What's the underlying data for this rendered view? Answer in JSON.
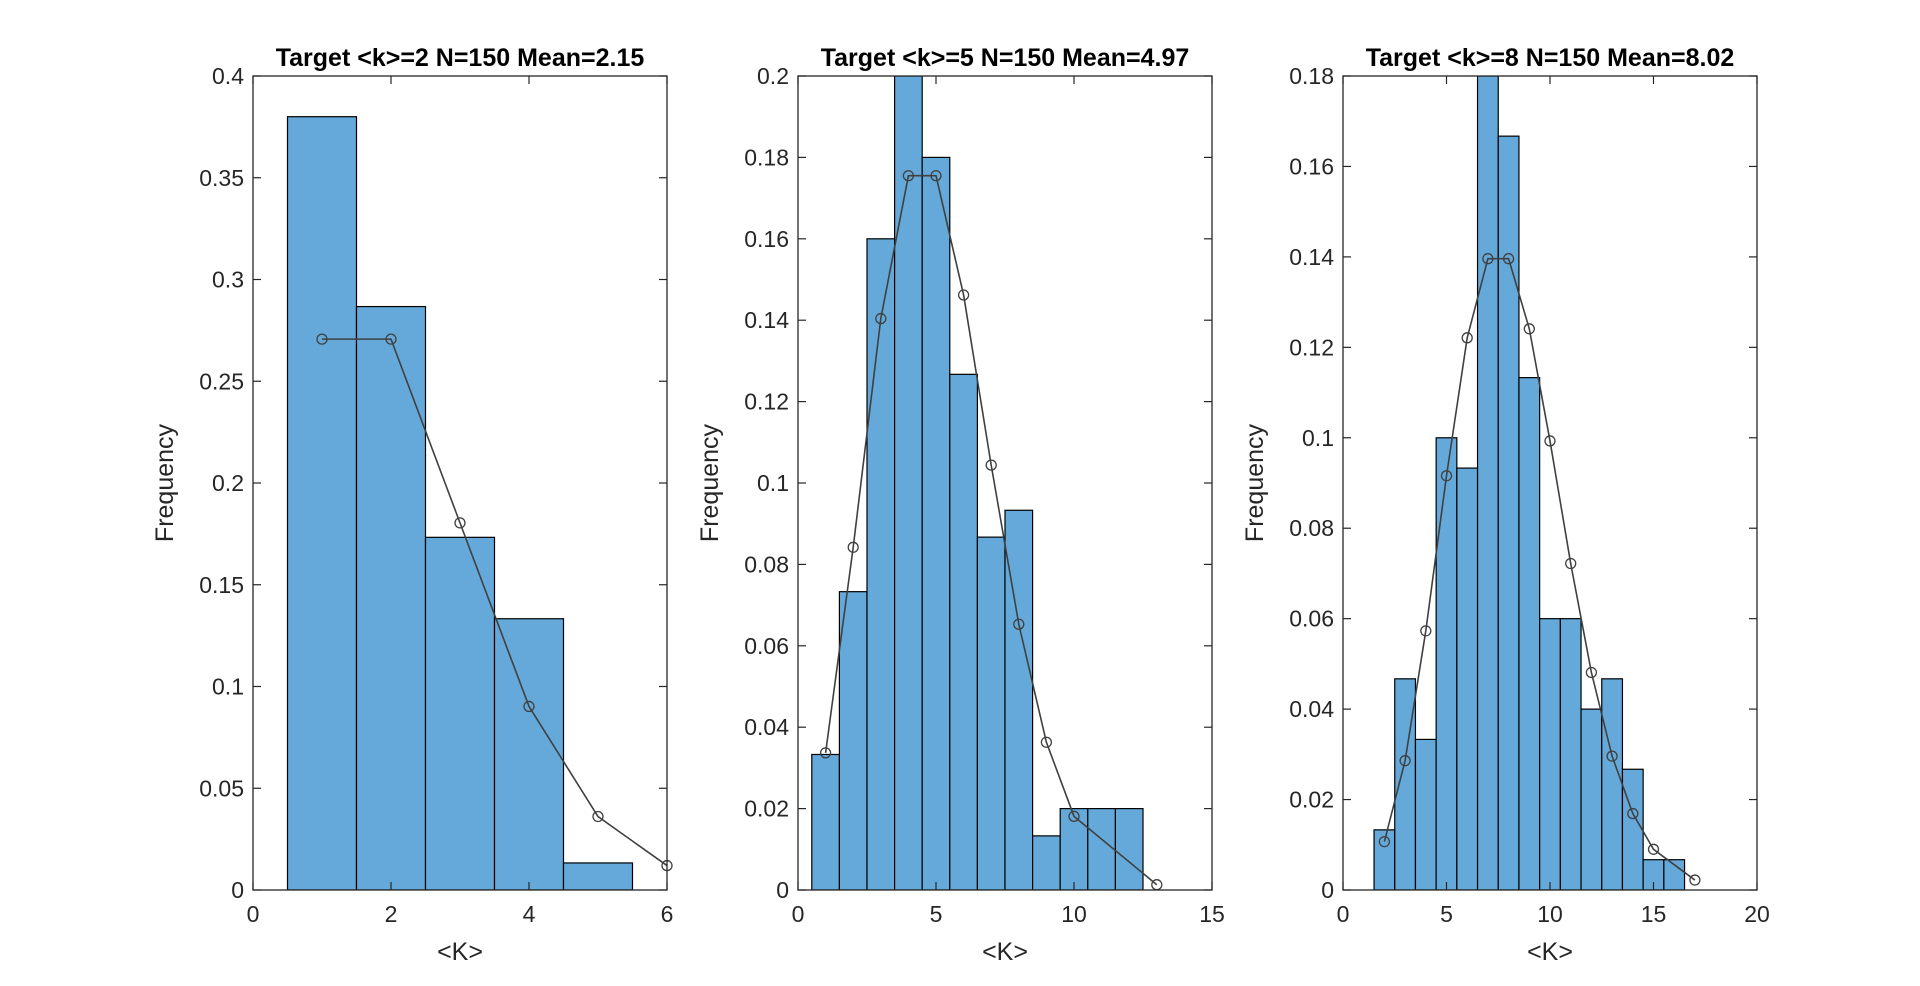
{
  "chart_data": [
    {
      "type": "bar",
      "title": "Target <k>=2  N=150  Mean=2.15",
      "xlabel": "<K>",
      "ylabel": "Frequency",
      "xlim": [
        0,
        6
      ],
      "ylim": [
        0,
        0.4
      ],
      "xticks": [
        0,
        2,
        4,
        6
      ],
      "yticks": [
        0,
        0.05,
        0.1,
        0.15,
        0.2,
        0.25,
        0.3,
        0.35,
        0.4
      ],
      "xtick_labels": [
        "0",
        "2",
        "4",
        "6"
      ],
      "ytick_labels": [
        "0",
        "0.05",
        "0.1",
        "0.15",
        "0.2",
        "0.25",
        "0.3",
        "0.35",
        "0.4"
      ],
      "bin_width": 1,
      "bins": [
        {
          "center": 1,
          "value": 0.38
        },
        {
          "center": 2,
          "value": 0.2867
        },
        {
          "center": 3,
          "value": 0.1733
        },
        {
          "center": 4,
          "value": 0.1333
        },
        {
          "center": 5,
          "value": 0.0133
        }
      ],
      "line": {
        "x": [
          1,
          2,
          3,
          4,
          5,
          6
        ],
        "y": [
          0.2707,
          0.2707,
          0.1804,
          0.0902,
          0.0361,
          0.012
        ]
      },
      "grid": false
    },
    {
      "type": "bar",
      "title": "Target <k>=5  N=150  Mean=4.97",
      "xlabel": "<K>",
      "ylabel": "Frequency",
      "xlim": [
        0,
        15
      ],
      "ylim": [
        0,
        0.2
      ],
      "xticks": [
        0,
        5,
        10,
        15
      ],
      "yticks": [
        0,
        0.02,
        0.04,
        0.06,
        0.08,
        0.1,
        0.12,
        0.14,
        0.16,
        0.18,
        0.2
      ],
      "xtick_labels": [
        "0",
        "5",
        "10",
        "15"
      ],
      "ytick_labels": [
        "0",
        "0.02",
        "0.04",
        "0.06",
        "0.08",
        "0.1",
        "0.12",
        "0.14",
        "0.16",
        "0.18",
        "0.2"
      ],
      "bin_width": 1,
      "bins": [
        {
          "center": 1,
          "value": 0.0333
        },
        {
          "center": 2,
          "value": 0.0733
        },
        {
          "center": 3,
          "value": 0.16
        },
        {
          "center": 4,
          "value": 0.2
        },
        {
          "center": 5,
          "value": 0.18
        },
        {
          "center": 6,
          "value": 0.1267
        },
        {
          "center": 7,
          "value": 0.0867
        },
        {
          "center": 8,
          "value": 0.0933
        },
        {
          "center": 9,
          "value": 0.0133
        },
        {
          "center": 10,
          "value": 0.02
        },
        {
          "center": 11,
          "value": 0.02
        },
        {
          "center": 12,
          "value": 0.02
        }
      ],
      "line": {
        "x": [
          1,
          2,
          3,
          4,
          5,
          6,
          7,
          8,
          9,
          10,
          13
        ],
        "y": [
          0.0337,
          0.0842,
          0.1404,
          0.1755,
          0.1755,
          0.1462,
          0.1044,
          0.0653,
          0.0363,
          0.0181,
          0.0013
        ]
      },
      "grid": false
    },
    {
      "type": "bar",
      "title": "Target <k>=8  N=150  Mean=8.02",
      "xlabel": "<K>",
      "ylabel": "Frequency",
      "xlim": [
        0,
        20
      ],
      "ylim": [
        0,
        0.18
      ],
      "xticks": [
        0,
        5,
        10,
        15,
        20
      ],
      "yticks": [
        0,
        0.02,
        0.04,
        0.06,
        0.08,
        0.1,
        0.12,
        0.14,
        0.16,
        0.18
      ],
      "xtick_labels": [
        "0",
        "5",
        "10",
        "15",
        "20"
      ],
      "ytick_labels": [
        "0",
        "0.02",
        "0.04",
        "0.06",
        "0.08",
        "0.1",
        "0.12",
        "0.14",
        "0.16",
        "0.18"
      ],
      "bin_width": 1,
      "bins": [
        {
          "center": 2,
          "value": 0.0133
        },
        {
          "center": 3,
          "value": 0.0467
        },
        {
          "center": 4,
          "value": 0.0333
        },
        {
          "center": 5,
          "value": 0.1
        },
        {
          "center": 6,
          "value": 0.0933
        },
        {
          "center": 7,
          "value": 0.18
        },
        {
          "center": 8,
          "value": 0.1667
        },
        {
          "center": 9,
          "value": 0.1133
        },
        {
          "center": 10,
          "value": 0.06
        },
        {
          "center": 11,
          "value": 0.06
        },
        {
          "center": 12,
          "value": 0.04
        },
        {
          "center": 13,
          "value": 0.0467
        },
        {
          "center": 14,
          "value": 0.0267
        },
        {
          "center": 15,
          "value": 0.0067
        },
        {
          "center": 16,
          "value": 0.0067
        }
      ],
      "line": {
        "x": [
          2,
          3,
          4,
          5,
          6,
          7,
          8,
          9,
          10,
          11,
          12,
          13,
          14,
          15,
          17
        ],
        "y": [
          0.0107,
          0.0286,
          0.0573,
          0.0916,
          0.1221,
          0.1396,
          0.1396,
          0.1241,
          0.0993,
          0.0722,
          0.0481,
          0.0296,
          0.0169,
          0.009,
          0.0022
        ]
      },
      "grid": false
    }
  ],
  "colors": {
    "bar_fill": "#64a9d9",
    "bar_edge": "#000000",
    "line": "#404040",
    "axis": "#262626"
  }
}
